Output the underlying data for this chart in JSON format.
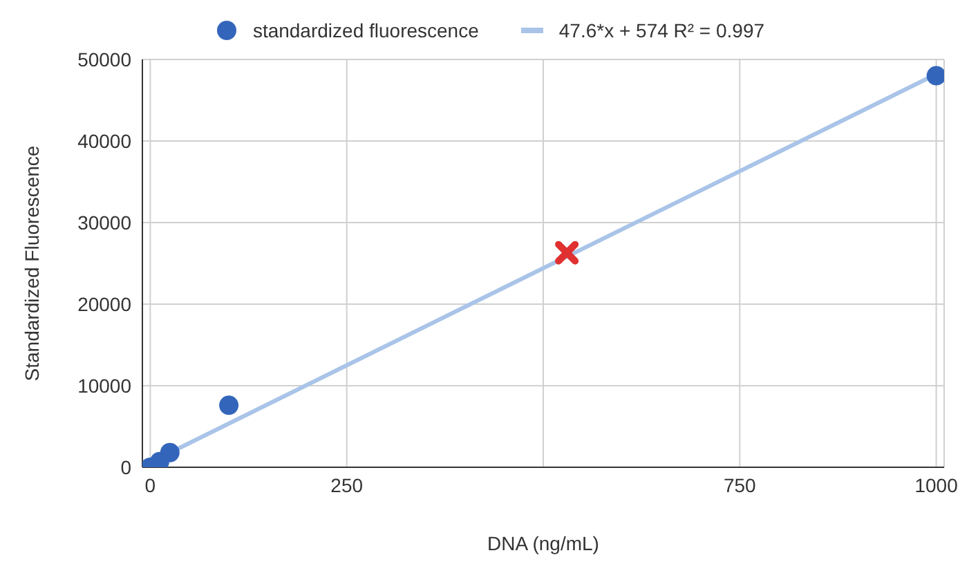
{
  "chart_data": {
    "type": "scatter",
    "xlabel": "DNA (ng/mL)",
    "ylabel": "Standardized Fluorescence",
    "xlim": [
      -10,
      1010
    ],
    "ylim": [
      0,
      50000
    ],
    "xticks": [
      0,
      250,
      {
        "value": 500,
        "label": null
      },
      750,
      1000
    ],
    "yticks": [
      0,
      10000,
      20000,
      30000,
      40000,
      50000
    ],
    "grid": true,
    "legend": "top",
    "series": [
      {
        "name": "standardized fluorescence",
        "marker": "circle",
        "color": "#3366bb",
        "x": [
          0,
          12,
          25,
          100,
          1000
        ],
        "values": [
          0,
          700,
          1800,
          7600,
          48000
        ]
      },
      {
        "name": "47.6*x + 574 R² = 0.997",
        "type": "line",
        "marker": "none",
        "line_style": "solid",
        "color": "#a9c4e8",
        "x": [
          0,
          1000
        ],
        "values": [
          600,
          48200
        ]
      },
      {
        "marker": "cross",
        "color": "#e03030",
        "x": [
          530
        ],
        "values": [
          26300
        ]
      }
    ]
  }
}
